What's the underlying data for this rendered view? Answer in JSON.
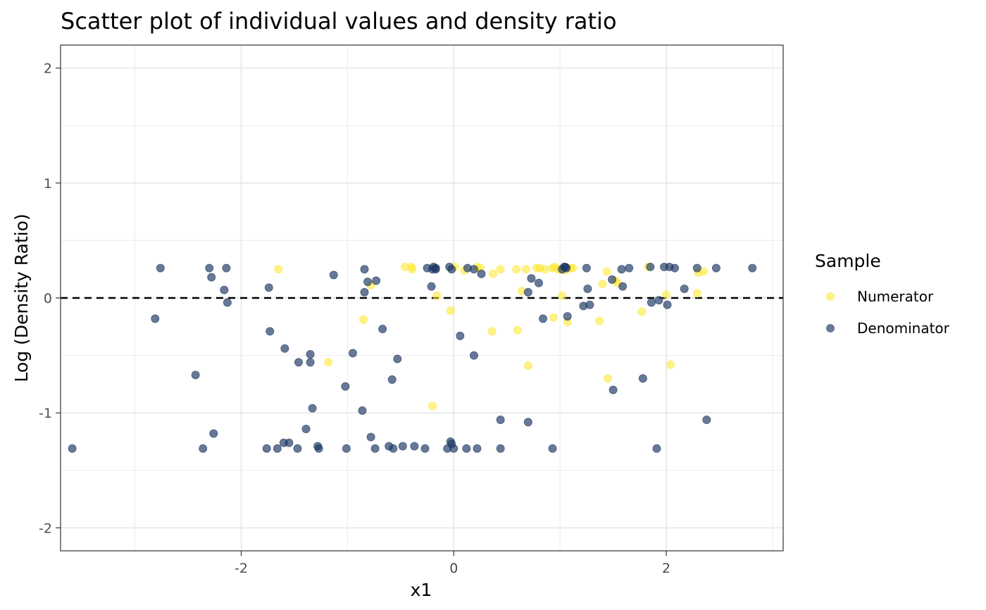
{
  "chart_data": {
    "type": "scatter",
    "title": "Scatter plot of individual values and density ratio",
    "xlabel": "x1",
    "ylabel": "Log (Density Ratio)",
    "xlim": [
      -3.7,
      3.1
    ],
    "ylim": [
      -2.2,
      2.2
    ],
    "x_ticks": [
      -2,
      0,
      2
    ],
    "x_tick_labels": [
      "-2",
      "0",
      "2"
    ],
    "y_ticks": [
      -2,
      -1,
      0,
      1,
      2
    ],
    "y_tick_labels": [
      "-2",
      "-1",
      "0",
      "1",
      "2"
    ],
    "grid": true,
    "reference_line": {
      "y": 0,
      "style": "dashed",
      "color": "#000000"
    },
    "legend": {
      "title": "Sample",
      "position": "right"
    },
    "colors": {
      "Numerator": "#FDE725",
      "Denominator": "#1F3A64"
    },
    "series": [
      {
        "name": "Numerator",
        "x": [
          -1.65,
          -0.85,
          -0.78,
          -1.18,
          -0.46,
          -0.4,
          -0.39,
          -0.16,
          -0.2,
          -0.03,
          0.01,
          0.1,
          0.22,
          0.25,
          0.37,
          0.44,
          0.36,
          0.59,
          0.6,
          0.64,
          0.68,
          0.7,
          0.78,
          0.81,
          0.86,
          0.93,
          0.95,
          0.98,
          1.01,
          1.02,
          1.05,
          1.07,
          1.1,
          1.12,
          1.4,
          1.44,
          1.45,
          1.52,
          1.54,
          1.77,
          1.83,
          2.0,
          2.04,
          2.29,
          2.3,
          2.35,
          0.94,
          1.37
        ],
        "y": [
          0.25,
          -0.19,
          0.11,
          -0.56,
          0.27,
          0.27,
          0.25,
          0.02,
          -0.94,
          -0.11,
          0.27,
          0.24,
          0.27,
          0.26,
          0.21,
          0.25,
          -0.29,
          0.25,
          -0.28,
          0.06,
          0.25,
          -0.59,
          0.26,
          0.26,
          0.25,
          0.26,
          0.27,
          0.25,
          0.25,
          0.02,
          0.24,
          -0.21,
          0.26,
          0.26,
          0.12,
          0.23,
          -0.7,
          0.15,
          0.13,
          -0.12,
          0.27,
          0.03,
          -0.58,
          0.04,
          0.22,
          0.23,
          -0.17,
          -0.2
        ]
      },
      {
        "name": "Denominator",
        "x": [
          -3.59,
          -2.81,
          -2.76,
          -2.43,
          -2.36,
          -2.3,
          -2.28,
          -2.26,
          -2.16,
          -2.14,
          -2.13,
          -1.76,
          -1.74,
          -1.73,
          -1.66,
          -1.6,
          -1.59,
          -1.55,
          -1.47,
          -1.46,
          -1.39,
          -1.35,
          -1.35,
          -1.33,
          -1.28,
          -1.27,
          -1.13,
          -1.02,
          -1.01,
          -0.95,
          -0.86,
          -0.84,
          -0.84,
          -0.81,
          -0.78,
          -0.74,
          -0.73,
          -0.67,
          -0.61,
          -0.58,
          -0.57,
          -0.53,
          -0.48,
          -0.37,
          -0.27,
          -0.25,
          -0.21,
          -0.2,
          -0.19,
          -0.17,
          -0.17,
          -0.06,
          -0.04,
          -0.03,
          -0.02,
          -0.02,
          0.0,
          0.06,
          0.12,
          0.13,
          0.19,
          0.19,
          0.22,
          0.26,
          0.44,
          0.44,
          0.7,
          0.7,
          0.73,
          0.8,
          0.84,
          0.93,
          1.02,
          1.04,
          1.05,
          1.06,
          1.07,
          1.22,
          1.25,
          1.26,
          1.28,
          1.49,
          1.5,
          1.58,
          1.59,
          1.65,
          1.78,
          1.85,
          1.86,
          1.91,
          1.93,
          1.98,
          2.01,
          2.03,
          2.08,
          2.17,
          2.29,
          2.38,
          2.47,
          2.81
        ],
        "y": [
          -1.31,
          -0.18,
          0.26,
          -0.67,
          -1.31,
          0.26,
          0.18,
          -1.18,
          0.07,
          0.26,
          -0.04,
          -1.31,
          0.09,
          -0.29,
          -1.31,
          -1.26,
          -0.44,
          -1.26,
          -1.31,
          -0.56,
          -1.14,
          -0.56,
          -0.49,
          -0.96,
          -1.29,
          -1.31,
          0.2,
          -0.77,
          -1.31,
          -0.48,
          -0.98,
          0.05,
          0.25,
          0.14,
          -1.21,
          -1.31,
          0.15,
          -0.27,
          -1.29,
          -0.71,
          -1.31,
          -0.53,
          -1.29,
          -1.29,
          -1.31,
          0.26,
          0.1,
          0.25,
          0.27,
          0.26,
          0.25,
          -1.31,
          0.27,
          -1.25,
          -1.27,
          0.25,
          -1.31,
          -0.33,
          -1.31,
          0.26,
          0.25,
          -0.5,
          -1.31,
          0.21,
          -1.06,
          -1.31,
          -1.08,
          0.05,
          0.17,
          0.13,
          -0.18,
          -1.31,
          0.25,
          0.27,
          0.27,
          0.26,
          -0.16,
          -0.07,
          0.26,
          0.08,
          -0.06,
          0.16,
          -0.8,
          0.25,
          0.1,
          0.26,
          -0.7,
          0.27,
          -0.04,
          -1.31,
          -0.02,
          0.27,
          -0.06,
          0.27,
          0.26,
          0.08,
          0.26,
          -1.06,
          0.26,
          0.26
        ]
      }
    ]
  }
}
